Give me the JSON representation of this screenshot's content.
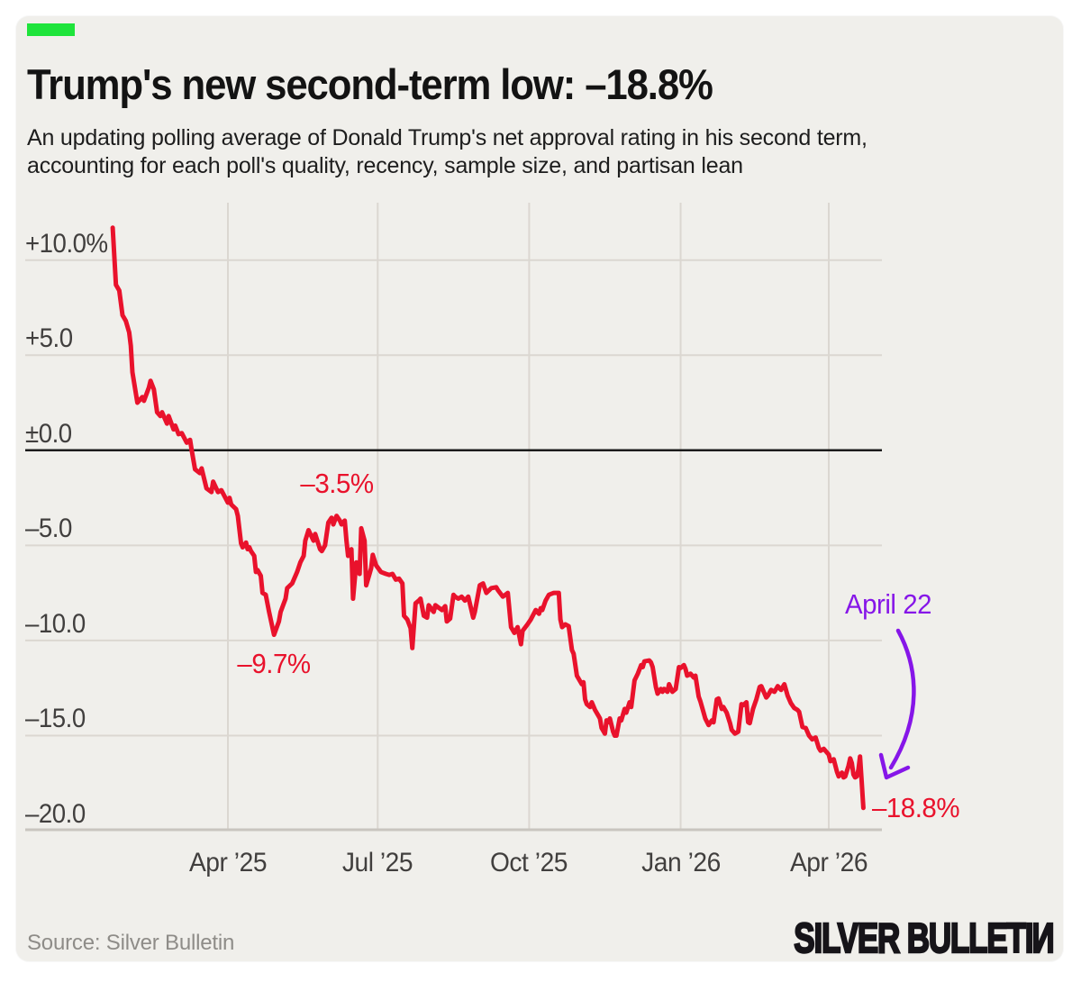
{
  "page": {
    "background": "#ffffff",
    "card_background": "#f0efeb"
  },
  "header": {
    "accent_color": "#1ee43b",
    "title": "Trump's new second-term low: –18.8%",
    "subtitle": "An updating polling average of Donald Trump's net approval rating in his second term,\naccounting for each poll's quality, recency, sample size, and partisan lean"
  },
  "footer": {
    "source": "Source: Silver Bulletin",
    "logo": "SILVER BULLETIN"
  },
  "chart_data": {
    "type": "line",
    "title": "Trump's new second-term low: –18.8%",
    "series_name": "Trump net approval rating (polling average)",
    "unit": "percentage points",
    "line_color": "#e9122c",
    "grid_color": "#dbd7d1",
    "axis_line_color": "#c9c5bf",
    "zero_line_color": "#1c1c1c",
    "tick_color": "#413f3e",
    "grid": true,
    "legend": "none",
    "ylim": [
      -20,
      12.8
    ],
    "x_axis": {
      "ticks": [
        {
          "label": "Apr ’25",
          "date": "2025-04-01"
        },
        {
          "label": "Jul ’25",
          "date": "2025-07-01"
        },
        {
          "label": "Oct ’25",
          "date": "2025-10-01"
        },
        {
          "label": "Jan ’26",
          "date": "2026-01-01"
        },
        {
          "label": "Apr ’26",
          "date": "2026-04-01"
        }
      ]
    },
    "y_axis": {
      "ticks": [
        {
          "label": "+10.0%",
          "value": 10
        },
        {
          "label": "+5.0",
          "value": 5
        },
        {
          "label": "±0.0",
          "value": 0
        },
        {
          "label": "–5.0",
          "value": -5
        },
        {
          "label": "–10.0",
          "value": -10
        },
        {
          "label": "–15.0",
          "value": -15
        },
        {
          "label": "–20.0",
          "value": -20
        }
      ]
    },
    "annotations": [
      {
        "id": "peak-mid-2025",
        "text": "–3.5%",
        "color": "#e9122c",
        "date": "2025-06-06",
        "value": -3.5,
        "placement": "above"
      },
      {
        "id": "dip-april-2025",
        "text": "–9.7%",
        "color": "#e9122c",
        "date": "2025-04-29",
        "value": -9.7,
        "placement": "below"
      },
      {
        "id": "latest-value",
        "text": "–18.8%",
        "color": "#e9122c",
        "date": "2026-04-22",
        "value": -18.8,
        "placement": "right"
      },
      {
        "id": "latest-date",
        "text": "April 22",
        "color": "#8616e8",
        "date": "2026-05-07",
        "value": -7.95,
        "placement": "center",
        "arrow": true
      }
    ],
    "points": [
      [
        "2025-01-21",
        11.7
      ],
      [
        "2025-01-23",
        8.7
      ],
      [
        "2025-01-25",
        8.4
      ],
      [
        "2025-01-27",
        7.1
      ],
      [
        "2025-01-29",
        6.8
      ],
      [
        "2025-01-31",
        6.2
      ],
      [
        "2025-02-01",
        5.5
      ],
      [
        "2025-02-02",
        4.1
      ],
      [
        "2025-02-05",
        2.5
      ],
      [
        "2025-02-08",
        2.8
      ],
      [
        "2025-02-09",
        2.6
      ],
      [
        "2025-02-12",
        3.3
      ],
      [
        "2025-02-13",
        3.65
      ],
      [
        "2025-02-15",
        3.2
      ],
      [
        "2025-02-17",
        2.0
      ],
      [
        "2025-02-19",
        1.8
      ],
      [
        "2025-02-20",
        2.0
      ],
      [
        "2025-02-23",
        1.4
      ],
      [
        "2025-02-24",
        1.8
      ],
      [
        "2025-02-27",
        1.1
      ],
      [
        "2025-02-28",
        1.3
      ],
      [
        "2025-03-02",
        0.85
      ],
      [
        "2025-03-04",
        0.9
      ],
      [
        "2025-03-07",
        0.4
      ],
      [
        "2025-03-09",
        0.55
      ],
      [
        "2025-03-10",
        0.0
      ],
      [
        "2025-03-12",
        -1.0
      ],
      [
        "2025-03-15",
        -1.2
      ],
      [
        "2025-03-16",
        -0.95
      ],
      [
        "2025-03-19",
        -2.0
      ],
      [
        "2025-03-22",
        -2.2
      ],
      [
        "2025-03-23",
        -1.65
      ],
      [
        "2025-03-26",
        -2.2
      ],
      [
        "2025-03-28",
        -2.1
      ],
      [
        "2025-04-01",
        -2.75
      ],
      [
        "2025-04-02",
        -2.5
      ],
      [
        "2025-04-03",
        -2.85
      ],
      [
        "2025-04-06",
        -3.1
      ],
      [
        "2025-04-07",
        -3.45
      ],
      [
        "2025-04-09",
        -4.9
      ],
      [
        "2025-04-10",
        -5.1
      ],
      [
        "2025-04-12",
        -4.85
      ],
      [
        "2025-04-13",
        -5.2
      ],
      [
        "2025-04-14",
        -5.1
      ],
      [
        "2025-04-15",
        -5.3
      ],
      [
        "2025-04-17",
        -5.55
      ],
      [
        "2025-04-18",
        -6.4
      ],
      [
        "2025-04-19",
        -6.3
      ],
      [
        "2025-04-21",
        -6.6
      ],
      [
        "2025-04-22",
        -7.5
      ],
      [
        "2025-04-24",
        -7.6
      ],
      [
        "2025-04-26",
        -8.5
      ],
      [
        "2025-04-29",
        -9.7
      ],
      [
        "2025-05-02",
        -9.0
      ],
      [
        "2025-05-03",
        -8.5
      ],
      [
        "2025-05-06",
        -7.8
      ],
      [
        "2025-05-07",
        -7.25
      ],
      [
        "2025-05-10",
        -7.0
      ],
      [
        "2025-05-13",
        -6.4
      ],
      [
        "2025-05-15",
        -5.9
      ],
      [
        "2025-05-17",
        -5.55
      ],
      [
        "2025-05-18",
        -4.75
      ],
      [
        "2025-05-20",
        -4.2
      ],
      [
        "2025-05-23",
        -4.75
      ],
      [
        "2025-05-24",
        -4.4
      ],
      [
        "2025-05-27",
        -5.2
      ],
      [
        "2025-05-28",
        -5.3
      ],
      [
        "2025-05-30",
        -5.0
      ],
      [
        "2025-06-01",
        -3.8
      ],
      [
        "2025-06-03",
        -3.55
      ],
      [
        "2025-06-04",
        -3.9
      ],
      [
        "2025-06-06",
        -3.45
      ],
      [
        "2025-06-08",
        -3.7
      ],
      [
        "2025-06-09",
        -3.9
      ],
      [
        "2025-06-11",
        -3.7
      ],
      [
        "2025-06-12",
        -4.75
      ],
      [
        "2025-06-13",
        -5.55
      ],
      [
        "2025-06-15",
        -5.2
      ],
      [
        "2025-06-16",
        -7.8
      ],
      [
        "2025-06-18",
        -5.9
      ],
      [
        "2025-06-20",
        -6.5
      ],
      [
        "2025-06-21",
        -4.1
      ],
      [
        "2025-06-23",
        -4.75
      ],
      [
        "2025-06-24",
        -7.1
      ],
      [
        "2025-06-26",
        -6.5
      ],
      [
        "2025-06-27",
        -6.2
      ],
      [
        "2025-06-28",
        -5.5
      ],
      [
        "2025-06-30",
        -6.05
      ],
      [
        "2025-07-03",
        -6.4
      ],
      [
        "2025-07-06",
        -6.5
      ],
      [
        "2025-07-08",
        -6.55
      ],
      [
        "2025-07-10",
        -6.5
      ],
      [
        "2025-07-12",
        -6.8
      ],
      [
        "2025-07-14",
        -6.75
      ],
      [
        "2025-07-16",
        -7.0
      ],
      [
        "2025-07-17",
        -8.7
      ],
      [
        "2025-07-19",
        -8.9
      ],
      [
        "2025-07-21",
        -9.35
      ],
      [
        "2025-07-22",
        -10.4
      ],
      [
        "2025-07-24",
        -8.05
      ],
      [
        "2025-07-26",
        -7.9
      ],
      [
        "2025-07-27",
        -7.8
      ],
      [
        "2025-07-29",
        -8.7
      ],
      [
        "2025-07-31",
        -8.8
      ],
      [
        "2025-08-01",
        -8.15
      ],
      [
        "2025-08-04",
        -8.5
      ],
      [
        "2025-08-05",
        -8.15
      ],
      [
        "2025-08-09",
        -8.4
      ],
      [
        "2025-08-11",
        -8.2
      ],
      [
        "2025-08-12",
        -9.0
      ],
      [
        "2025-08-14",
        -8.85
      ],
      [
        "2025-08-16",
        -7.6
      ],
      [
        "2025-08-17",
        -7.7
      ],
      [
        "2025-08-19",
        -7.8
      ],
      [
        "2025-08-21",
        -7.7
      ],
      [
        "2025-08-23",
        -7.9
      ],
      [
        "2025-08-25",
        -7.7
      ],
      [
        "2025-08-28",
        -8.8
      ],
      [
        "2025-08-29",
        -8.5
      ],
      [
        "2025-09-01",
        -7.1
      ],
      [
        "2025-09-03",
        -7.0
      ],
      [
        "2025-09-05",
        -7.5
      ],
      [
        "2025-09-08",
        -7.25
      ],
      [
        "2025-09-11",
        -7.2
      ],
      [
        "2025-09-12",
        -7.35
      ],
      [
        "2025-09-15",
        -7.7
      ],
      [
        "2025-09-18",
        -7.5
      ],
      [
        "2025-09-20",
        -9.3
      ],
      [
        "2025-09-22",
        -9.6
      ],
      [
        "2025-09-24",
        -9.3
      ],
      [
        "2025-09-26",
        -10.2
      ],
      [
        "2025-09-27",
        -9.5
      ],
      [
        "2025-09-30",
        -9.15
      ],
      [
        "2025-10-02",
        -8.9
      ],
      [
        "2025-10-05",
        -8.4
      ],
      [
        "2025-10-07",
        -8.6
      ],
      [
        "2025-10-08",
        -8.3
      ],
      [
        "2025-10-09",
        -8.4
      ],
      [
        "2025-10-11",
        -7.9
      ],
      [
        "2025-10-13",
        -7.6
      ],
      [
        "2025-10-16",
        -7.5
      ],
      [
        "2025-10-19",
        -7.5
      ],
      [
        "2025-10-20",
        -8.9
      ],
      [
        "2025-10-21",
        -9.3
      ],
      [
        "2025-10-23",
        -9.15
      ],
      [
        "2025-10-25",
        -9.25
      ],
      [
        "2025-10-27",
        -10.5
      ],
      [
        "2025-10-28",
        -10.7
      ],
      [
        "2025-10-30",
        -11.85
      ],
      [
        "2025-10-31",
        -12.0
      ],
      [
        "2025-11-02",
        -12.3
      ],
      [
        "2025-11-03",
        -12.2
      ],
      [
        "2025-11-04",
        -13.1
      ],
      [
        "2025-11-05",
        -13.35
      ],
      [
        "2025-11-07",
        -13.5
      ],
      [
        "2025-11-08",
        -13.25
      ],
      [
        "2025-11-10",
        -13.65
      ],
      [
        "2025-11-12",
        -13.95
      ],
      [
        "2025-11-13",
        -14.1
      ],
      [
        "2025-11-14",
        -14.6
      ],
      [
        "2025-11-16",
        -14.9
      ],
      [
        "2025-11-17",
        -14.2
      ],
      [
        "2025-11-18",
        -14.3
      ],
      [
        "2025-11-19",
        -14.1
      ],
      [
        "2025-11-21",
        -14.8
      ],
      [
        "2025-11-22",
        -15.0
      ],
      [
        "2025-11-23",
        -15.0
      ],
      [
        "2025-11-25",
        -14.1
      ],
      [
        "2025-11-26",
        -14.2
      ],
      [
        "2025-11-28",
        -13.6
      ],
      [
        "2025-11-29",
        -13.8
      ],
      [
        "2025-12-01",
        -13.25
      ],
      [
        "2025-12-02",
        -13.5
      ],
      [
        "2025-12-04",
        -12.1
      ],
      [
        "2025-12-06",
        -11.75
      ],
      [
        "2025-12-08",
        -11.3
      ],
      [
        "2025-12-09",
        -11.4
      ],
      [
        "2025-12-10",
        -11.1
      ],
      [
        "2025-12-13",
        -11.05
      ],
      [
        "2025-12-14",
        -11.15
      ],
      [
        "2025-12-15",
        -11.4
      ],
      [
        "2025-12-17",
        -12.45
      ],
      [
        "2025-12-18",
        -12.8
      ],
      [
        "2025-12-20",
        -12.55
      ],
      [
        "2025-12-21",
        -12.7
      ],
      [
        "2025-12-22",
        -12.55
      ],
      [
        "2025-12-24",
        -12.7
      ],
      [
        "2025-12-25",
        -12.3
      ],
      [
        "2025-12-27",
        -12.7
      ],
      [
        "2025-12-29",
        -12.55
      ],
      [
        "2025-12-31",
        -11.4
      ],
      [
        "2026-01-01",
        -11.45
      ],
      [
        "2026-01-03",
        -11.3
      ],
      [
        "2026-01-04",
        -11.5
      ],
      [
        "2026-01-05",
        -11.85
      ],
      [
        "2026-01-07",
        -11.75
      ],
      [
        "2026-01-09",
        -11.95
      ],
      [
        "2026-01-10",
        -11.85
      ],
      [
        "2026-01-12",
        -12.95
      ],
      [
        "2026-01-13",
        -13.2
      ],
      [
        "2026-01-15",
        -13.8
      ],
      [
        "2026-01-16",
        -14.1
      ],
      [
        "2026-01-18",
        -14.45
      ],
      [
        "2026-01-20",
        -14.2
      ],
      [
        "2026-01-21",
        -14.3
      ],
      [
        "2026-01-23",
        -13.1
      ],
      [
        "2026-01-24",
        -13.05
      ],
      [
        "2026-01-26",
        -13.6
      ],
      [
        "2026-01-27",
        -13.5
      ],
      [
        "2026-01-29",
        -13.8
      ],
      [
        "2026-01-31",
        -14.35
      ],
      [
        "2026-02-01",
        -14.7
      ],
      [
        "2026-02-03",
        -14.9
      ],
      [
        "2026-02-05",
        -14.8
      ],
      [
        "2026-02-07",
        -13.35
      ],
      [
        "2026-02-08",
        -13.4
      ],
      [
        "2026-02-10",
        -13.25
      ],
      [
        "2026-02-11",
        -14.3
      ],
      [
        "2026-02-12",
        -14.35
      ],
      [
        "2026-02-14",
        -13.6
      ],
      [
        "2026-02-16",
        -13.1
      ],
      [
        "2026-02-18",
        -12.45
      ],
      [
        "2026-02-19",
        -12.4
      ],
      [
        "2026-02-22",
        -13.0
      ],
      [
        "2026-02-23",
        -12.9
      ],
      [
        "2026-02-25",
        -12.6
      ],
      [
        "2026-02-27",
        -12.7
      ],
      [
        "2026-03-01",
        -12.4
      ],
      [
        "2026-03-03",
        -12.6
      ],
      [
        "2026-03-05",
        -12.3
      ],
      [
        "2026-03-07",
        -12.9
      ],
      [
        "2026-03-09",
        -13.3
      ],
      [
        "2026-03-11",
        -13.55
      ],
      [
        "2026-03-13",
        -13.65
      ],
      [
        "2026-03-14",
        -13.75
      ],
      [
        "2026-03-16",
        -14.55
      ],
      [
        "2026-03-18",
        -14.6
      ],
      [
        "2026-03-20",
        -15.0
      ],
      [
        "2026-03-22",
        -15.2
      ],
      [
        "2026-03-24",
        -15.1
      ],
      [
        "2026-03-26",
        -15.65
      ],
      [
        "2026-03-27",
        -15.8
      ],
      [
        "2026-03-29",
        -15.7
      ],
      [
        "2026-04-01",
        -16.0
      ],
      [
        "2026-04-02",
        -16.35
      ],
      [
        "2026-04-04",
        -16.25
      ],
      [
        "2026-04-06",
        -16.9
      ],
      [
        "2026-04-07",
        -17.15
      ],
      [
        "2026-04-09",
        -16.95
      ],
      [
        "2026-04-10",
        -17.2
      ],
      [
        "2026-04-11",
        -17.15
      ],
      [
        "2026-04-13",
        -16.6
      ],
      [
        "2026-04-14",
        -16.2
      ],
      [
        "2026-04-15",
        -16.45
      ],
      [
        "2026-04-16",
        -17.05
      ],
      [
        "2026-04-17",
        -17.2
      ],
      [
        "2026-04-18",
        -17.15
      ],
      [
        "2026-04-19",
        -16.8
      ],
      [
        "2026-04-20",
        -16.1
      ],
      [
        "2026-04-21",
        -17.4
      ],
      [
        "2026-04-22",
        -18.8
      ]
    ]
  }
}
